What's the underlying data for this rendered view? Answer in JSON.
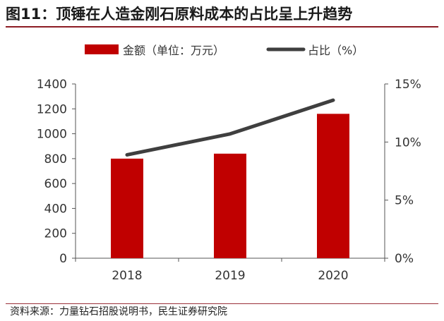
{
  "header": {
    "title": "图11：顶锤在人造金刚石原料成本的占比呈上升趋势"
  },
  "footer": {
    "source": "资料来源：力量钻石招股说明书，民生证券研究院"
  },
  "colors": {
    "bar": "#c00000",
    "line": "#3f3f3f",
    "rule": "#8c1c24"
  },
  "chart_data": {
    "type": "bar",
    "categories": [
      "2018",
      "2019",
      "2020"
    ],
    "series": [
      {
        "name": "金额（单位：万元）",
        "type": "bar",
        "axis": "left",
        "values": [
          800,
          840,
          1160
        ]
      },
      {
        "name": "占比（%）",
        "type": "line",
        "axis": "right",
        "values": [
          8.9,
          10.7,
          13.6
        ]
      }
    ],
    "left_axis": {
      "min": 0,
      "max": 1400,
      "step": 200,
      "ticks": [
        "0",
        "200",
        "400",
        "600",
        "800",
        "1000",
        "1200",
        "1400"
      ]
    },
    "right_axis": {
      "min": 0,
      "max": 15,
      "step": 5,
      "ticks": [
        "0%",
        "5%",
        "10%",
        "15%"
      ]
    },
    "legend_position": "top",
    "grid": false
  }
}
